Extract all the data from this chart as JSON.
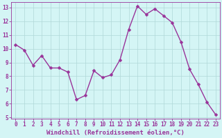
{
  "x": [
    0,
    1,
    2,
    3,
    4,
    5,
    6,
    7,
    8,
    9,
    10,
    11,
    12,
    13,
    14,
    15,
    16,
    17,
    18,
    19,
    20,
    21,
    22,
    23
  ],
  "y": [
    10.3,
    9.9,
    8.8,
    9.5,
    8.6,
    8.6,
    8.3,
    6.3,
    6.6,
    8.4,
    7.9,
    8.1,
    9.2,
    11.4,
    13.1,
    12.5,
    12.9,
    12.4,
    11.9,
    10.5,
    8.5,
    7.4,
    6.1,
    5.2
  ],
  "line_color": "#993399",
  "marker_color": "#993399",
  "bg_color": "#d4f5f5",
  "grid_color": "#b0d8d8",
  "xlabel": "Windchill (Refroidissement éolien,°C)",
  "ylim": [
    4.9,
    13.4
  ],
  "xlim": [
    -0.5,
    23.5
  ],
  "yticks": [
    5,
    6,
    7,
    8,
    9,
    10,
    11,
    12,
    13
  ],
  "xticks": [
    0,
    1,
    2,
    3,
    4,
    5,
    6,
    7,
    8,
    9,
    10,
    11,
    12,
    13,
    14,
    15,
    16,
    17,
    18,
    19,
    20,
    21,
    22,
    23
  ],
  "tick_label_size": 5.5,
  "xlabel_size": 6.5,
  "line_width": 1.0,
  "marker_size": 2.5
}
